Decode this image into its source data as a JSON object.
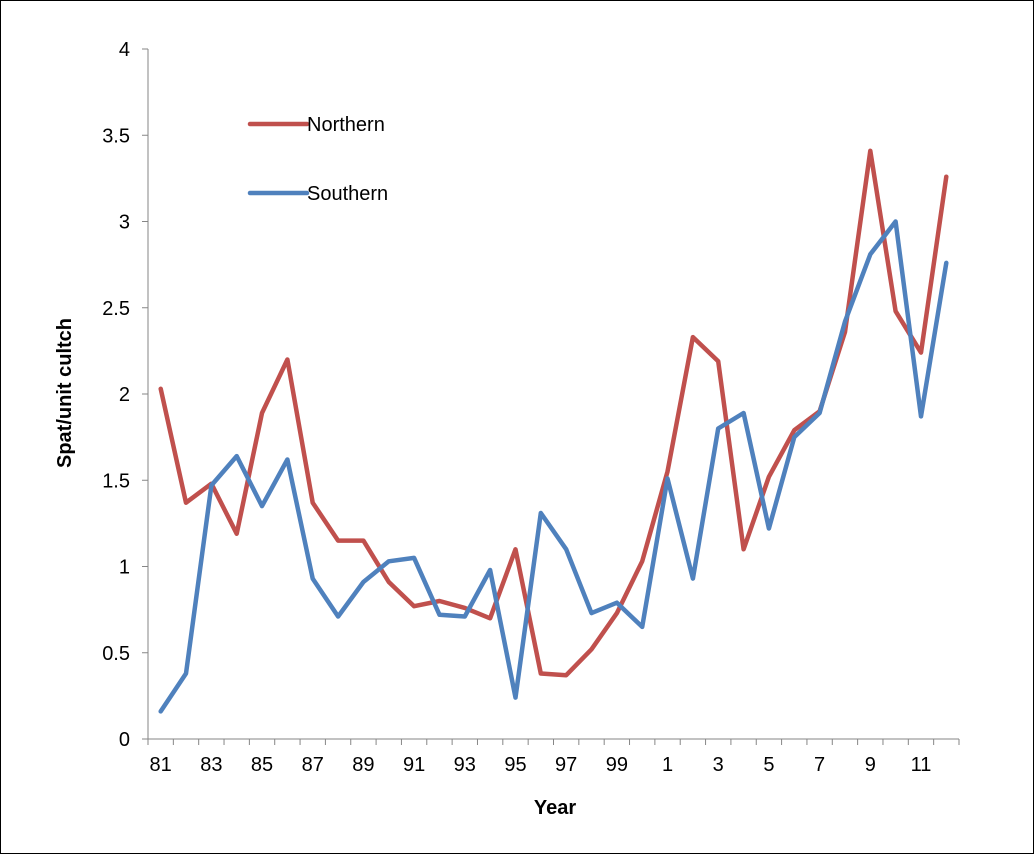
{
  "chart_data": {
    "type": "line",
    "title": "",
    "xlabel": "Year",
    "ylabel": "Spat/unit cultch",
    "ylim": [
      0,
      4
    ],
    "yticks": [
      "0",
      "0.5",
      "1",
      "1.5",
      "2",
      "2.5",
      "3",
      "3.5",
      "4"
    ],
    "x": [
      "81",
      "82",
      "83",
      "84",
      "85",
      "86",
      "87",
      "88",
      "89",
      "90",
      "91",
      "92",
      "93",
      "94",
      "95",
      "96",
      "97",
      "98",
      "99",
      "0",
      "1",
      "2",
      "3",
      "4",
      "5",
      "6",
      "7",
      "8",
      "9",
      "10",
      "11",
      "12"
    ],
    "xtick_labels": [
      "81",
      "83",
      "85",
      "87",
      "89",
      "91",
      "93",
      "95",
      "97",
      "99",
      "1",
      "3",
      "5",
      "7",
      "9",
      "11"
    ],
    "legend_position": "top-left",
    "grid": false,
    "series": [
      {
        "name": "Northern",
        "color": "#C0504D",
        "values": [
          2.03,
          1.37,
          1.48,
          1.19,
          1.89,
          2.2,
          1.37,
          1.15,
          1.15,
          0.91,
          0.77,
          0.8,
          0.76,
          0.7,
          1.1,
          0.38,
          0.37,
          0.52,
          0.73,
          1.03,
          1.55,
          2.33,
          2.19,
          1.1,
          1.52,
          1.79,
          1.9,
          2.36,
          3.41,
          2.48,
          2.24,
          3.26
        ]
      },
      {
        "name": "Southern",
        "color": "#4F81BD",
        "values": [
          0.16,
          0.38,
          1.47,
          1.64,
          1.35,
          1.62,
          0.93,
          0.71,
          0.91,
          1.03,
          1.05,
          0.72,
          0.71,
          0.98,
          0.24,
          1.31,
          1.1,
          0.73,
          0.79,
          0.65,
          1.51,
          0.93,
          1.8,
          1.89,
          1.22,
          1.75,
          1.89,
          2.42,
          2.81,
          3.0,
          1.87,
          2.76
        ]
      }
    ]
  }
}
